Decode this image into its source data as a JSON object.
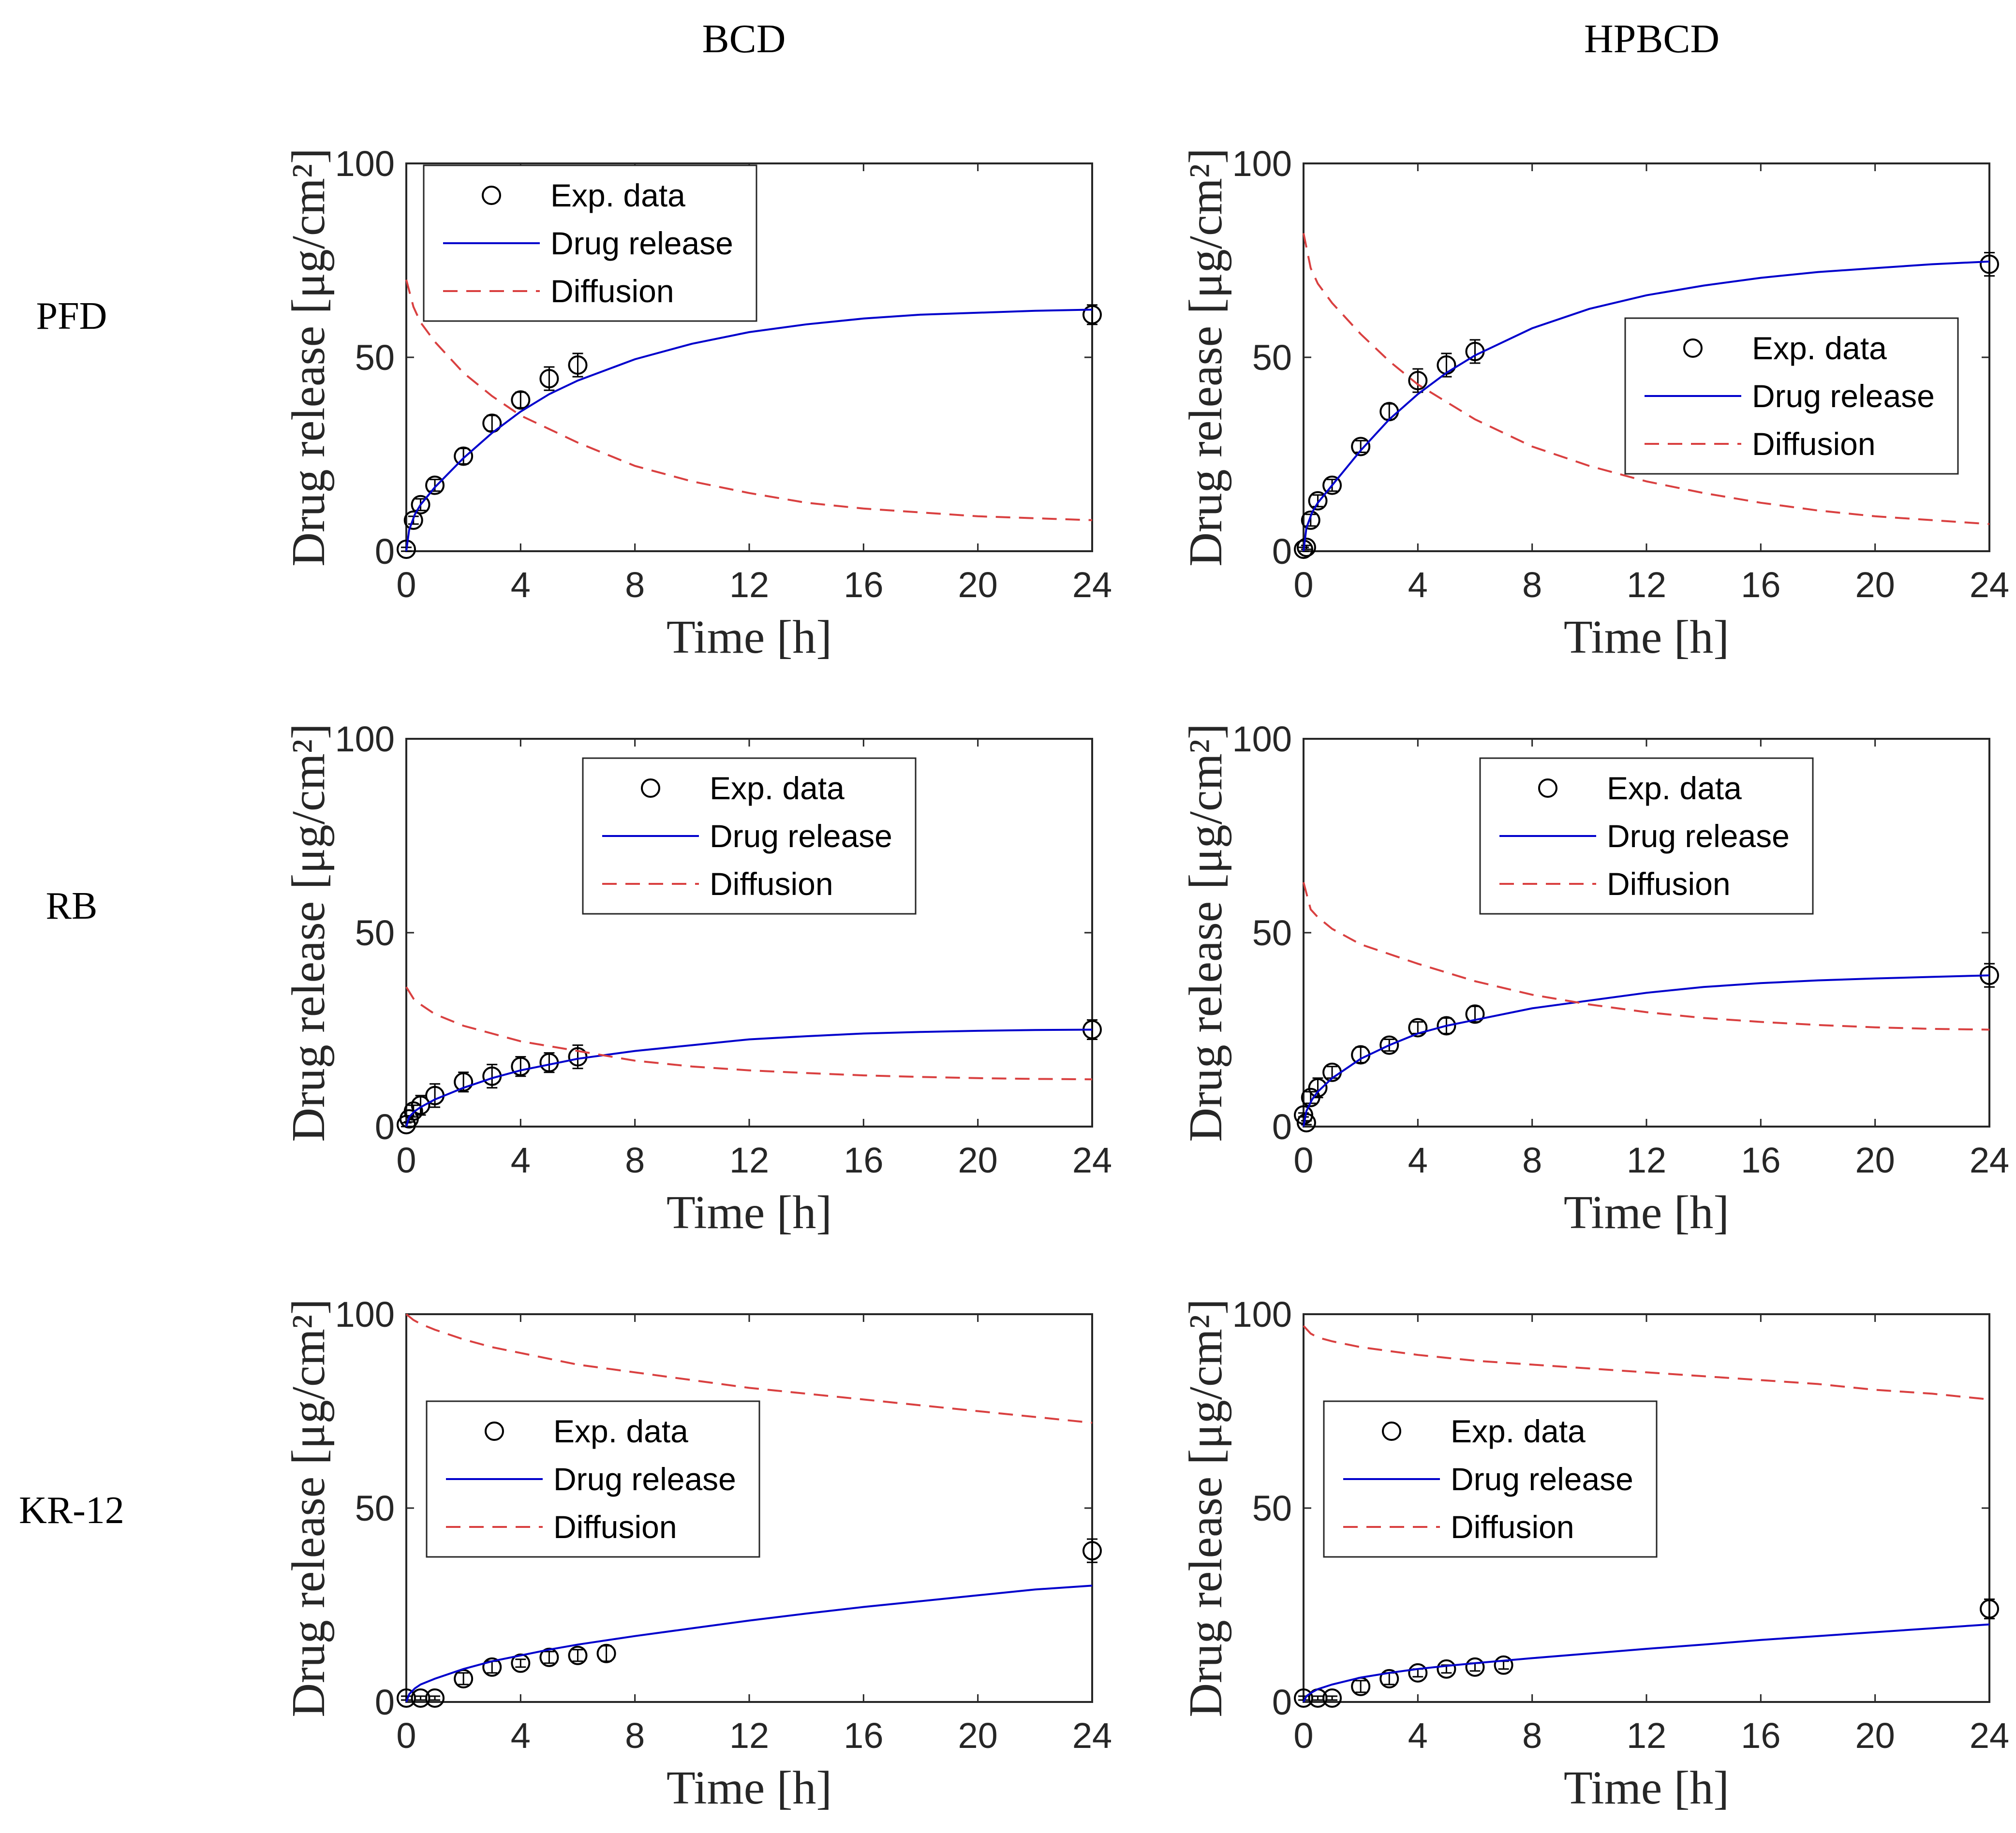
{
  "figure": {
    "column_titles": [
      "BCD",
      "HPBCD"
    ],
    "row_titles": [
      "PFD",
      "RB",
      "KR-12"
    ]
  },
  "chart_data": [
    {
      "type": "line",
      "row": "PFD",
      "column": "BCD",
      "xlabel": "Time [h]",
      "ylabel": "Drug release [μg/cm²]",
      "xlim": [
        0,
        24
      ],
      "ylim": [
        0,
        100
      ],
      "xticks": [
        0,
        4,
        8,
        12,
        16,
        20,
        24
      ],
      "yticks": [
        0,
        50,
        100
      ],
      "legend_position": "top-left",
      "legend": [
        "Exp. data",
        "Drug release",
        "Diffusion"
      ],
      "series": [
        {
          "name": "Exp. data",
          "kind": "points_with_error",
          "color": "#000000",
          "x": [
            0,
            0.25,
            0.5,
            1,
            2,
            3,
            4,
            5,
            6,
            24
          ],
          "y": [
            0.5,
            8,
            12,
            17,
            24.5,
            33,
            39,
            44.5,
            48,
            61
          ],
          "err": [
            0.5,
            1,
            1.5,
            1.5,
            2,
            2,
            2,
            3,
            3,
            2.5
          ]
        },
        {
          "name": "Drug release",
          "kind": "line",
          "color": "#0000cc",
          "x": [
            0,
            0.1,
            0.3,
            0.5,
            1,
            2,
            3,
            4,
            5,
            6,
            8,
            10,
            12,
            14,
            16,
            18,
            20,
            22,
            24
          ],
          "y": [
            0,
            5.5,
            9.5,
            12,
            16.5,
            24,
            30.5,
            36,
            40.5,
            44,
            49.5,
            53.5,
            56.5,
            58.5,
            60,
            61,
            61.5,
            62,
            62.3
          ]
        },
        {
          "name": "Diffusion",
          "kind": "dashed",
          "color": "#d94040",
          "x": [
            0,
            0.25,
            0.5,
            1,
            2,
            3,
            4,
            6,
            8,
            10,
            12,
            14,
            16,
            18,
            20,
            22,
            24
          ],
          "y": [
            70,
            63,
            59,
            54,
            46,
            40,
            35,
            28,
            22,
            18,
            15,
            12.5,
            11,
            10,
            9,
            8.5,
            8
          ]
        }
      ]
    },
    {
      "type": "line",
      "row": "PFD",
      "column": "HPBCD",
      "xlabel": "Time [h]",
      "ylabel": "Drug release [μg/cm²]",
      "xlim": [
        0,
        24
      ],
      "ylim": [
        0,
        100
      ],
      "xticks": [
        0,
        4,
        8,
        12,
        16,
        20,
        24
      ],
      "yticks": [
        0,
        50,
        100
      ],
      "legend_position": "right",
      "legend": [
        "Exp. data",
        "Drug release",
        "Diffusion"
      ],
      "series": [
        {
          "name": "Exp. data",
          "kind": "points_with_error",
          "color": "#000000",
          "x": [
            0,
            0.1,
            0.25,
            0.5,
            1,
            2,
            3,
            4,
            5,
            6,
            24
          ],
          "y": [
            0.5,
            1,
            8,
            13,
            17,
            27,
            36,
            44,
            48,
            51.5,
            74
          ],
          "err": [
            0.5,
            0.5,
            1.5,
            1.5,
            1.5,
            1.5,
            2,
            3,
            3,
            3,
            3
          ]
        },
        {
          "name": "Drug release",
          "kind": "line",
          "color": "#0000cc",
          "x": [
            0,
            0.1,
            0.3,
            0.5,
            1,
            2,
            3,
            4,
            5,
            6,
            8,
            10,
            12,
            14,
            16,
            18,
            20,
            22,
            24
          ],
          "y": [
            0,
            6,
            10,
            12.5,
            17,
            26,
            34,
            40.5,
            46,
            50.5,
            57.5,
            62.5,
            66,
            68.5,
            70.5,
            72,
            73,
            74,
            74.7
          ]
        },
        {
          "name": "Diffusion",
          "kind": "dashed",
          "color": "#d94040",
          "x": [
            0,
            0.25,
            0.5,
            1,
            2,
            3,
            4,
            6,
            8,
            10,
            12,
            14,
            16,
            18,
            20,
            22,
            24
          ],
          "y": [
            82,
            73,
            69,
            64,
            56,
            49,
            43,
            34,
            27,
            22,
            18,
            15,
            12.5,
            10.5,
            9,
            8,
            7
          ]
        }
      ]
    },
    {
      "type": "line",
      "row": "RB",
      "column": "BCD",
      "xlabel": "Time [h]",
      "ylabel": "Drug release [μg/cm²]",
      "xlim": [
        0,
        24
      ],
      "ylim": [
        0,
        100
      ],
      "xticks": [
        0,
        4,
        8,
        12,
        16,
        20,
        24
      ],
      "yticks": [
        0,
        50,
        100
      ],
      "legend_position": "top-center",
      "legend": [
        "Exp. data",
        "Drug release",
        "Diffusion"
      ],
      "series": [
        {
          "name": "Exp. data",
          "kind": "points_with_error",
          "color": "#000000",
          "x": [
            0,
            0.1,
            0.25,
            0.5,
            1,
            2,
            3,
            4,
            5,
            6,
            24
          ],
          "y": [
            0.5,
            2,
            4,
            5.5,
            8,
            11.5,
            13,
            15.5,
            16.5,
            18,
            25
          ],
          "err": [
            0.5,
            0.8,
            1.5,
            2.5,
            3,
            2.5,
            3,
            2.5,
            2.5,
            3,
            2.5
          ]
        },
        {
          "name": "Drug release",
          "kind": "line",
          "color": "#0000cc",
          "x": [
            0,
            0.1,
            0.3,
            0.5,
            1,
            2,
            3,
            4,
            5,
            6,
            8,
            10,
            12,
            14,
            16,
            18,
            20,
            22,
            24
          ],
          "y": [
            0,
            2.5,
            4,
            5,
            7,
            10,
            12.5,
            14.5,
            16,
            17.5,
            19.5,
            21,
            22.5,
            23.3,
            24,
            24.4,
            24.7,
            24.9,
            25
          ]
        },
        {
          "name": "Diffusion",
          "kind": "dashed",
          "color": "#d94040",
          "x": [
            0,
            0.25,
            0.5,
            1,
            2,
            3,
            4,
            6,
            8,
            10,
            12,
            14,
            16,
            18,
            20,
            22,
            24
          ],
          "y": [
            36,
            33,
            31.5,
            29,
            26,
            24,
            22,
            19.5,
            17,
            15.5,
            14.5,
            13.8,
            13.2,
            12.8,
            12.5,
            12.3,
            12.2
          ]
        }
      ]
    },
    {
      "type": "line",
      "row": "RB",
      "column": "HPBCD",
      "xlabel": "Time [h]",
      "ylabel": "Drug release [μg/cm²]",
      "xlim": [
        0,
        24
      ],
      "ylim": [
        0,
        100
      ],
      "xticks": [
        0,
        4,
        8,
        12,
        16,
        20,
        24
      ],
      "yticks": [
        0,
        50,
        100
      ],
      "legend_position": "top-center",
      "legend": [
        "Exp. data",
        "Drug release",
        "Diffusion"
      ],
      "series": [
        {
          "name": "Exp. data",
          "kind": "points_with_error",
          "color": "#000000",
          "x": [
            0,
            0.1,
            0.25,
            0.5,
            1,
            2,
            3,
            4,
            5,
            6,
            24
          ],
          "y": [
            3,
            1,
            7.5,
            10,
            14,
            18.5,
            21,
            25.5,
            26,
            29,
            39
          ],
          "err": [
            0.5,
            0.5,
            1.5,
            2.5,
            1.5,
            2,
            1.5,
            1.5,
            2,
            2,
            3
          ]
        },
        {
          "name": "Drug release",
          "kind": "line",
          "color": "#0000cc",
          "x": [
            0,
            0.1,
            0.3,
            0.5,
            1,
            2,
            3,
            4,
            5,
            6,
            8,
            10,
            12,
            14,
            16,
            18,
            20,
            22,
            24
          ],
          "y": [
            0,
            4,
            7,
            9,
            12.5,
            17.5,
            21,
            24,
            26,
            27.5,
            30.5,
            32.5,
            34.5,
            36,
            37,
            37.7,
            38.2,
            38.6,
            39
          ]
        },
        {
          "name": "Diffusion",
          "kind": "dashed",
          "color": "#d94040",
          "x": [
            0,
            0.25,
            0.5,
            1,
            2,
            3,
            4,
            6,
            8,
            10,
            12,
            14,
            16,
            18,
            20,
            22,
            24
          ],
          "y": [
            63,
            56,
            54,
            51,
            47,
            44.5,
            42,
            37.5,
            34,
            31.5,
            29.5,
            28,
            27,
            26.2,
            25.6,
            25.2,
            25
          ]
        }
      ]
    },
    {
      "type": "line",
      "row": "KR-12",
      "column": "BCD",
      "xlabel": "Time [h]",
      "ylabel": "Drug release [μg/cm²]",
      "xlim": [
        0,
        24
      ],
      "ylim": [
        0,
        100
      ],
      "xticks": [
        0,
        4,
        8,
        12,
        16,
        20,
        24
      ],
      "yticks": [
        0,
        50,
        100
      ],
      "legend_position": "left",
      "legend": [
        "Exp. data",
        "Drug release",
        "Diffusion"
      ],
      "series": [
        {
          "name": "Exp. data",
          "kind": "points_with_error",
          "color": "#000000",
          "x": [
            0,
            0.5,
            1,
            2,
            3,
            4,
            5,
            6,
            7,
            24
          ],
          "y": [
            1,
            1,
            1,
            6,
            9,
            10,
            11.5,
            12,
            12.5,
            39
          ],
          "err": [
            0.5,
            0.5,
            0.5,
            1.5,
            1.5,
            1,
            1.5,
            1.5,
            2,
            3
          ]
        },
        {
          "name": "Drug release",
          "kind": "line",
          "color": "#0000cc",
          "x": [
            0,
            0.1,
            0.3,
            0.5,
            1,
            2,
            3,
            4,
            5,
            6,
            8,
            10,
            12,
            14,
            16,
            18,
            20,
            22,
            24
          ],
          "y": [
            0,
            2,
            3.5,
            4.5,
            6,
            8.5,
            10.5,
            12,
            13.5,
            14.8,
            17,
            19,
            21,
            22.8,
            24.5,
            26,
            27.5,
            29,
            30
          ]
        },
        {
          "name": "Diffusion",
          "kind": "dashed",
          "color": "#d94040",
          "x": [
            0,
            0.25,
            0.5,
            1,
            2,
            3,
            4,
            6,
            8,
            10,
            12,
            14,
            16,
            18,
            20,
            22,
            24
          ],
          "y": [
            100,
            98.5,
            97.5,
            96,
            93.5,
            91.5,
            90,
            87,
            85,
            83,
            81,
            79.5,
            78,
            76.5,
            75,
            73.5,
            72
          ]
        }
      ]
    },
    {
      "type": "line",
      "row": "KR-12",
      "column": "HPBCD",
      "xlabel": "Time [h]",
      "ylabel": "Drug release [μg/cm²]",
      "xlim": [
        0,
        24
      ],
      "ylim": [
        0,
        100
      ],
      "xticks": [
        0,
        4,
        8,
        12,
        16,
        20,
        24
      ],
      "yticks": [
        0,
        50,
        100
      ],
      "legend_position": "left",
      "legend": [
        "Exp. data",
        "Drug release",
        "Diffusion"
      ],
      "series": [
        {
          "name": "Exp. data",
          "kind": "points_with_error",
          "color": "#000000",
          "x": [
            0,
            0.5,
            1,
            2,
            3,
            4,
            5,
            6,
            7,
            24
          ],
          "y": [
            1,
            1,
            1,
            4,
            6,
            7.5,
            8.5,
            9,
            9.5,
            24
          ],
          "err": [
            0.5,
            0.5,
            0.5,
            1.5,
            1.5,
            1,
            1,
            1,
            1,
            2.5
          ]
        },
        {
          "name": "Drug release",
          "kind": "line",
          "color": "#0000cc",
          "x": [
            0,
            0.1,
            0.3,
            0.5,
            1,
            2,
            3,
            4,
            5,
            6,
            8,
            10,
            12,
            14,
            16,
            18,
            20,
            22,
            24
          ],
          "y": [
            0,
            1.5,
            2.5,
            3.3,
            4.5,
            6.3,
            7.5,
            8.5,
            9.3,
            10,
            11.3,
            12.5,
            13.7,
            14.8,
            16,
            17,
            18,
            19,
            20
          ]
        },
        {
          "name": "Diffusion",
          "kind": "dashed",
          "color": "#d94040",
          "x": [
            0,
            0.25,
            0.5,
            1,
            2,
            3,
            4,
            6,
            8,
            10,
            12,
            14,
            16,
            18,
            20,
            22,
            24
          ],
          "y": [
            97,
            95,
            94,
            93,
            91.5,
            90.5,
            89.5,
            88,
            87,
            86,
            85,
            84,
            83,
            82,
            80.5,
            79.5,
            78
          ]
        }
      ]
    }
  ]
}
